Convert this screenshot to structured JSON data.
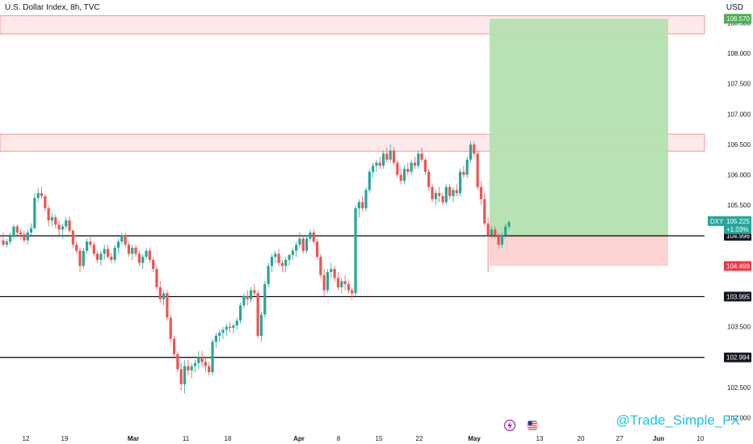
{
  "header": {
    "title": "U.S. Dollar Index, 8h, TVC",
    "currency": "USD"
  },
  "watermark": "@Trade_Simple_FX",
  "icons": {
    "lightning": "lightning-icon",
    "flag": "us-flag-icon"
  },
  "colors": {
    "bull": "#26a69a",
    "bear": "#ef5350",
    "zone_fill": "#fde8ea",
    "zone_border": "#f08080",
    "profit_fill": "#b5e0b0",
    "loss_fill": "#fcd0d0",
    "level_line": "#000000",
    "target_label": "#4caf50",
    "stop_label": "#f23645"
  },
  "chart_data": {
    "type": "candlestick",
    "symbol": "DXY",
    "timeframe": "8h",
    "ylim": [
      101.9,
      108.6
    ],
    "y_ticks": [
      "102.000",
      "102.500",
      "103.000",
      "103.500",
      "104.000",
      "104.500",
      "105.000",
      "105.500",
      "106.000",
      "106.500",
      "107.000",
      "107.500",
      "108.000",
      "108.500"
    ],
    "x_ticks": [
      "12",
      "19",
      "Mar",
      "11",
      "18",
      "Apr",
      "8",
      "15",
      "22",
      "May",
      "13",
      "20",
      "27",
      "Jun",
      "10"
    ],
    "resistance_zones": [
      {
        "low": 108.32,
        "high": 108.62
      },
      {
        "low": 106.39,
        "high": 106.67
      }
    ],
    "horizontal_levels": [
      "104.996",
      "103.995",
      "102.994"
    ],
    "position": {
      "target": "108.570",
      "entry": "104.996",
      "stop": "104.499"
    },
    "last_price": {
      "symbol": "DXY",
      "value": "105.225",
      "change": "+1.03%"
    },
    "candles": [
      [
        104.92,
        105.05,
        104.82,
        104.85
      ],
      [
        104.85,
        104.95,
        104.8,
        104.9
      ],
      [
        104.9,
        105.05,
        104.85,
        104.98
      ],
      [
        104.98,
        105.18,
        104.95,
        105.15
      ],
      [
        105.15,
        105.18,
        105.0,
        105.05
      ],
      [
        105.05,
        105.1,
        104.95,
        105.02
      ],
      [
        105.02,
        105.08,
        104.88,
        104.92
      ],
      [
        104.92,
        105.1,
        104.85,
        105.05
      ],
      [
        105.05,
        105.2,
        105.0,
        105.12
      ],
      [
        105.12,
        105.7,
        105.1,
        105.62
      ],
      [
        105.62,
        105.78,
        105.55,
        105.7
      ],
      [
        105.7,
        105.8,
        105.6,
        105.65
      ],
      [
        105.65,
        105.68,
        105.4,
        105.45
      ],
      [
        105.45,
        105.5,
        105.15,
        105.25
      ],
      [
        105.25,
        105.38,
        105.15,
        105.3
      ],
      [
        105.3,
        105.35,
        105.12,
        105.18
      ],
      [
        105.18,
        105.25,
        105.0,
        105.1
      ],
      [
        105.1,
        105.2,
        104.95,
        105.15
      ],
      [
        105.15,
        105.3,
        105.1,
        105.25
      ],
      [
        105.25,
        105.32,
        105.05,
        105.08
      ],
      [
        105.08,
        105.1,
        104.8,
        104.85
      ],
      [
        104.85,
        104.9,
        104.7,
        104.75
      ],
      [
        104.75,
        104.8,
        104.4,
        104.5
      ],
      [
        104.5,
        104.8,
        104.45,
        104.75
      ],
      [
        104.75,
        104.95,
        104.7,
        104.9
      ],
      [
        104.9,
        105.0,
        104.8,
        104.85
      ],
      [
        104.85,
        104.9,
        104.65,
        104.7
      ],
      [
        104.7,
        104.75,
        104.55,
        104.6
      ],
      [
        104.6,
        104.75,
        104.5,
        104.7
      ],
      [
        104.7,
        104.85,
        104.6,
        104.78
      ],
      [
        104.78,
        104.85,
        104.62,
        104.65
      ],
      [
        104.65,
        104.72,
        104.55,
        104.6
      ],
      [
        104.6,
        104.85,
        104.55,
        104.8
      ],
      [
        104.8,
        104.95,
        104.7,
        104.9
      ],
      [
        104.9,
        105.05,
        104.85,
        105.0
      ],
      [
        105.0,
        105.05,
        104.8,
        104.85
      ],
      [
        104.85,
        104.9,
        104.65,
        104.7
      ],
      [
        104.7,
        104.85,
        104.6,
        104.8
      ],
      [
        104.8,
        104.85,
        104.65,
        104.7
      ],
      [
        104.7,
        104.75,
        104.5,
        104.55
      ],
      [
        104.55,
        104.7,
        104.45,
        104.65
      ],
      [
        104.65,
        104.8,
        104.6,
        104.75
      ],
      [
        104.75,
        104.8,
        104.55,
        104.6
      ],
      [
        104.6,
        104.65,
        104.4,
        104.45
      ],
      [
        104.45,
        104.5,
        104.1,
        104.15
      ],
      [
        104.15,
        104.25,
        103.9,
        103.95
      ],
      [
        103.95,
        104.1,
        103.85,
        104.05
      ],
      [
        104.05,
        104.1,
        103.6,
        103.65
      ],
      [
        103.65,
        103.7,
        103.25,
        103.3
      ],
      [
        103.3,
        103.35,
        103.0,
        103.05
      ],
      [
        103.05,
        103.1,
        102.75,
        102.8
      ],
      [
        102.8,
        102.9,
        102.45,
        102.55
      ],
      [
        102.55,
        102.95,
        102.4,
        102.85
      ],
      [
        102.85,
        102.95,
        102.7,
        102.78
      ],
      [
        102.78,
        102.9,
        102.65,
        102.85
      ],
      [
        102.85,
        102.95,
        102.75,
        102.9
      ],
      [
        102.9,
        103.1,
        102.8,
        103.0
      ],
      [
        103.0,
        103.1,
        102.85,
        102.92
      ],
      [
        102.92,
        103.0,
        102.75,
        102.85
      ],
      [
        102.85,
        102.92,
        102.7,
        102.75
      ],
      [
        102.75,
        103.3,
        102.7,
        103.25
      ],
      [
        103.25,
        103.4,
        103.15,
        103.35
      ],
      [
        103.35,
        103.45,
        103.25,
        103.4
      ],
      [
        103.4,
        103.5,
        103.3,
        103.45
      ],
      [
        103.45,
        103.55,
        103.35,
        103.5
      ],
      [
        103.5,
        103.58,
        103.4,
        103.48
      ],
      [
        103.48,
        103.55,
        103.38,
        103.52
      ],
      [
        103.52,
        103.65,
        103.45,
        103.6
      ],
      [
        103.6,
        103.9,
        103.55,
        103.85
      ],
      [
        103.85,
        104.05,
        103.8,
        104.0
      ],
      [
        104.0,
        104.1,
        103.85,
        103.95
      ],
      [
        103.95,
        104.15,
        103.9,
        104.1
      ],
      [
        104.1,
        104.2,
        104.0,
        104.05
      ],
      [
        104.05,
        104.1,
        103.3,
        103.35
      ],
      [
        103.35,
        103.75,
        103.25,
        103.7
      ],
      [
        103.7,
        104.25,
        103.65,
        104.2
      ],
      [
        104.2,
        104.55,
        104.15,
        104.5
      ],
      [
        104.5,
        104.7,
        104.4,
        104.65
      ],
      [
        104.65,
        104.75,
        104.55,
        104.7
      ],
      [
        104.7,
        104.78,
        104.5,
        104.55
      ],
      [
        104.55,
        104.6,
        104.4,
        104.5
      ],
      [
        104.5,
        104.65,
        104.4,
        104.6
      ],
      [
        104.6,
        104.7,
        104.5,
        104.68
      ],
      [
        104.68,
        104.8,
        104.6,
        104.75
      ],
      [
        104.75,
        104.9,
        104.65,
        104.85
      ],
      [
        104.85,
        105.05,
        104.8,
        104.95
      ],
      [
        104.95,
        105.0,
        104.7,
        104.75
      ],
      [
        104.75,
        105.0,
        104.7,
        104.95
      ],
      [
        104.95,
        105.1,
        104.9,
        105.05
      ],
      [
        105.05,
        105.1,
        104.85,
        104.9
      ],
      [
        104.9,
        104.95,
        104.6,
        104.65
      ],
      [
        104.65,
        104.7,
        104.3,
        104.35
      ],
      [
        104.35,
        104.45,
        104.0,
        104.1
      ],
      [
        104.1,
        104.45,
        104.05,
        104.4
      ],
      [
        104.4,
        104.55,
        104.3,
        104.45
      ],
      [
        104.45,
        104.5,
        104.25,
        104.3
      ],
      [
        104.3,
        104.4,
        104.1,
        104.15
      ],
      [
        104.15,
        104.3,
        104.05,
        104.25
      ],
      [
        104.25,
        104.35,
        104.1,
        104.2
      ],
      [
        104.2,
        104.25,
        104.05,
        104.1
      ],
      [
        104.1,
        104.15,
        103.95,
        104.05
      ],
      [
        104.05,
        105.5,
        104.0,
        105.45
      ],
      [
        105.45,
        105.6,
        105.3,
        105.55
      ],
      [
        105.55,
        105.65,
        105.4,
        105.45
      ],
      [
        105.45,
        105.8,
        105.4,
        105.75
      ],
      [
        105.75,
        106.1,
        105.7,
        106.05
      ],
      [
        106.05,
        106.2,
        105.95,
        106.15
      ],
      [
        106.15,
        106.25,
        106.05,
        106.2
      ],
      [
        106.2,
        106.3,
        106.1,
        106.15
      ],
      [
        106.15,
        106.4,
        106.1,
        106.35
      ],
      [
        106.35,
        106.45,
        106.2,
        106.25
      ],
      [
        106.25,
        106.5,
        106.2,
        106.4
      ],
      [
        106.4,
        106.45,
        106.15,
        106.2
      ],
      [
        106.2,
        106.25,
        105.95,
        106.0
      ],
      [
        106.0,
        106.1,
        105.85,
        105.9
      ],
      [
        105.9,
        106.15,
        105.85,
        106.1
      ],
      [
        106.1,
        106.2,
        106.0,
        106.05
      ],
      [
        106.05,
        106.25,
        106.0,
        106.2
      ],
      [
        106.2,
        106.3,
        106.1,
        106.15
      ],
      [
        106.15,
        106.4,
        106.1,
        106.35
      ],
      [
        106.35,
        106.45,
        106.2,
        106.25
      ],
      [
        106.25,
        106.28,
        106.0,
        106.05
      ],
      [
        106.05,
        106.1,
        105.75,
        105.8
      ],
      [
        105.8,
        105.85,
        105.55,
        105.6
      ],
      [
        105.6,
        105.75,
        105.5,
        105.7
      ],
      [
        105.7,
        105.8,
        105.55,
        105.65
      ],
      [
        105.65,
        105.7,
        105.5,
        105.55
      ],
      [
        105.55,
        105.85,
        105.5,
        105.8
      ],
      [
        105.8,
        105.85,
        105.6,
        105.65
      ],
      [
        105.65,
        105.8,
        105.55,
        105.75
      ],
      [
        105.75,
        105.85,
        105.65,
        105.7
      ],
      [
        105.7,
        106.1,
        105.65,
        106.05
      ],
      [
        106.05,
        106.15,
        105.95,
        106.0
      ],
      [
        106.0,
        106.3,
        105.95,
        106.25
      ],
      [
        106.25,
        106.55,
        106.2,
        106.5
      ],
      [
        106.5,
        106.55,
        106.3,
        106.35
      ],
      [
        106.35,
        106.4,
        105.75,
        105.8
      ],
      [
        105.8,
        105.9,
        105.5,
        105.6
      ],
      [
        105.6,
        105.7,
        105.15,
        105.2
      ],
      [
        105.2,
        105.3,
        104.4,
        105.0
      ],
      [
        105.0,
        105.15,
        104.95,
        105.1
      ],
      [
        105.1,
        105.15,
        104.95,
        105.0
      ],
      [
        105.0,
        105.05,
        104.8,
        104.85
      ],
      [
        104.85,
        105.05,
        104.8,
        105.0
      ],
      [
        105.0,
        105.2,
        104.95,
        105.15
      ],
      [
        105.15,
        105.25,
        105.1,
        105.22
      ]
    ]
  }
}
